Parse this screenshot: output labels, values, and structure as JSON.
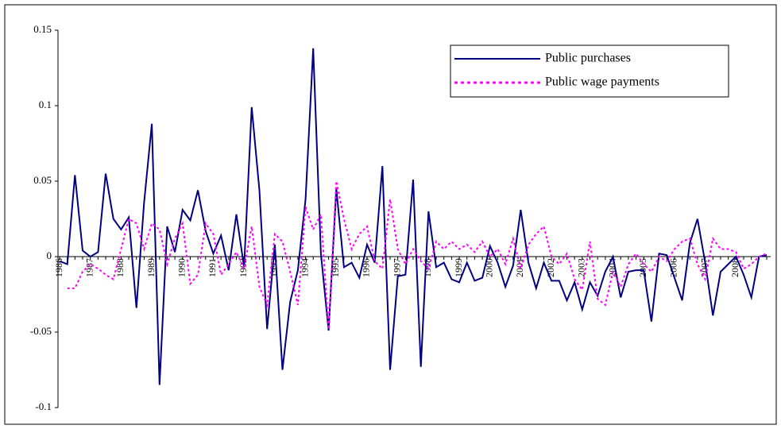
{
  "chart_data": {
    "type": "line",
    "categories": [
      "1986",
      null,
      null,
      null,
      "1987",
      null,
      null,
      null,
      "1988",
      null,
      null,
      null,
      "1989",
      null,
      null,
      null,
      "1990",
      null,
      null,
      null,
      "1991",
      null,
      null,
      null,
      "1992",
      null,
      null,
      null,
      "1993",
      null,
      null,
      null,
      "1994",
      null,
      null,
      null,
      "1995",
      null,
      null,
      null,
      "1996",
      null,
      null,
      null,
      "1997",
      null,
      null,
      null,
      "1998",
      null,
      null,
      null,
      "1999",
      null,
      null,
      null,
      "2000",
      null,
      null,
      null,
      "2001",
      null,
      null,
      null,
      "2002",
      null,
      null,
      null,
      "2003",
      null,
      null,
      null,
      "2004",
      null,
      null,
      null,
      "2005",
      null,
      null,
      null,
      "2006",
      null,
      null,
      null,
      "2007",
      null,
      null,
      null,
      "2008",
      null,
      null,
      null,
      null
    ],
    "series": [
      {
        "name": "Public purchases",
        "color": "#000080",
        "dash": false,
        "values": [
          -0.003,
          -0.005,
          0.054,
          0.004,
          0,
          0.003,
          0.055,
          0.025,
          0.018,
          0.026,
          -0.034,
          0.036,
          0.088,
          -0.085,
          0.02,
          0.003,
          0.031,
          0.024,
          0.044,
          0.017,
          0.002,
          0.014,
          -0.009,
          0.028,
          -0.007,
          0.099,
          0.044,
          -0.048,
          0.008,
          -0.075,
          -0.03,
          -0.009,
          0.038,
          0.138,
          0.002,
          -0.049,
          0.045,
          -0.007,
          -0.004,
          -0.014,
          0.008,
          -0.004,
          0.06,
          -0.075,
          -0.013,
          -0.012,
          0.051,
          -0.073,
          0.03,
          -0.007,
          -0.004,
          -0.015,
          -0.017,
          -0.004,
          -0.016,
          -0.014,
          0.007,
          -0.004,
          -0.02,
          -0.006,
          0.031,
          -0.004,
          -0.021,
          -0.004,
          -0.016,
          -0.016,
          -0.029,
          -0.017,
          -0.035,
          -0.017,
          -0.026,
          -0.01,
          0,
          -0.027,
          -0.01,
          -0.009,
          -0.009,
          -0.043,
          0.002,
          0.001,
          -0.014,
          -0.029,
          0.009,
          0.025,
          -0.004,
          -0.039,
          -0.01,
          -0.005,
          0,
          -0.012,
          -0.027,
          0,
          0.001
        ]
      },
      {
        "name": "Public wage payments",
        "color": "#ff00ff",
        "dash": true,
        "values": [
          null,
          -0.021,
          -0.021,
          -0.01,
          -0.005,
          -0.008,
          -0.012,
          -0.015,
          0.005,
          0.025,
          0.022,
          0.005,
          0.022,
          0.018,
          -0.005,
          0.012,
          0.022,
          -0.018,
          -0.012,
          0.022,
          0.015,
          -0.012,
          -0.005,
          0.003,
          -0.008,
          0.02,
          -0.02,
          -0.032,
          0.015,
          0.01,
          -0.01,
          -0.032,
          0.033,
          0.018,
          0.028,
          -0.048,
          0.05,
          0.025,
          0.005,
          0.015,
          0.02,
          -0.003,
          -0.008,
          0.038,
          0.005,
          -0.005,
          0.005,
          -0.003,
          -0.008,
          0.01,
          0.005,
          0.01,
          0.005,
          0.008,
          0.003,
          0.01,
          0,
          0.005,
          -0.005,
          0.012,
          -0.008,
          0.008,
          0.015,
          0.02,
          0,
          -0.005,
          0.002,
          -0.015,
          -0.022,
          0.01,
          -0.028,
          -0.032,
          -0.01,
          -0.02,
          -0.005,
          0.002,
          -0.005,
          -0.01,
          0,
          -0.003,
          0.005,
          0.01,
          0.012,
          -0.005,
          -0.015,
          0.012,
          0.005,
          0.005,
          0.003,
          -0.008,
          -0.005,
          0,
          0.002
        ]
      }
    ],
    "ylim": [
      -0.1,
      0.15
    ],
    "yticks": [
      -0.1,
      -0.05,
      0,
      0.05,
      0.1,
      0.15
    ],
    "legend": "upper-right"
  }
}
